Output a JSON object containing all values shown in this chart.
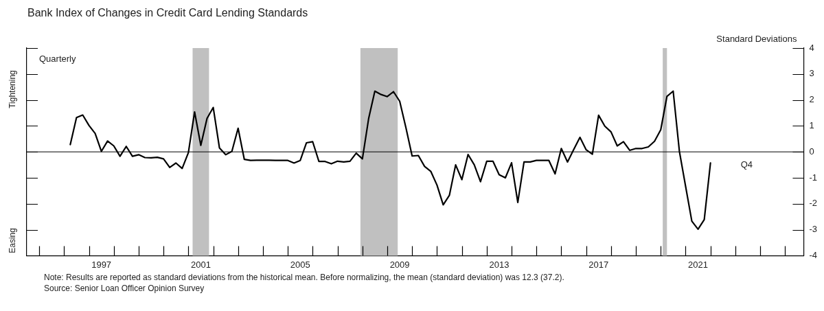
{
  "chart_data": {
    "type": "line",
    "title": "Bank Index of Changes in Credit Card Lending Standards",
    "ylabel": "Standard Deviations",
    "annotations": [
      "Quarterly",
      "Tightening",
      "Easing",
      "Q4",
      "Note: Results are reported as standard deviations from the historical mean. Before normalizing, the mean (standard deviation) was 12.3 (37.2).",
      "Source: Senior Loan Officer Opinion Survey"
    ],
    "x": [
      1996.25,
      1996.5,
      1996.75,
      1997,
      1997.25,
      1997.5,
      1997.75,
      1998,
      1998.25,
      1998.5,
      1998.75,
      1999,
      1999.25,
      1999.5,
      1999.75,
      2000,
      2000.25,
      2000.5,
      2000.75,
      2001,
      2001.25,
      2001.5,
      2001.75,
      2002,
      2002.25,
      2002.5,
      2002.75,
      2003,
      2003.25,
      2003.5,
      2003.75,
      2004,
      2004.25,
      2004.5,
      2004.75,
      2005,
      2005.25,
      2005.5,
      2005.75,
      2006,
      2006.25,
      2006.5,
      2006.75,
      2007,
      2007.25,
      2007.5,
      2007.75,
      2008,
      2008.25,
      2008.5,
      2008.75,
      2009,
      2009.25,
      2009.5,
      2009.75,
      2010,
      2010.25,
      2010.5,
      2010.75,
      2011,
      2011.25,
      2011.5,
      2011.75,
      2012,
      2012.25,
      2012.5,
      2012.75,
      2013,
      2013.25,
      2013.5,
      2013.75,
      2014,
      2014.25,
      2014.5,
      2014.75,
      2015,
      2015.25,
      2015.5,
      2015.75,
      2016,
      2016.25,
      2016.5,
      2016.75,
      2017,
      2017.25,
      2017.5,
      2017.75,
      2018,
      2018.25,
      2018.5,
      2018.75,
      2019,
      2019.25,
      2019.5,
      2019.75,
      2020,
      2020.25,
      2020.5,
      2020.75,
      2021,
      2021.25,
      2021.5,
      2021.75,
      2022
    ],
    "series": [
      {
        "color": "#000000",
        "values": [
          0.28,
          1.32,
          1.42,
          1.02,
          0.71,
          0.02,
          0.42,
          0.23,
          -0.17,
          0.21,
          -0.17,
          -0.11,
          -0.22,
          -0.23,
          -0.21,
          -0.27,
          -0.6,
          -0.43,
          -0.64,
          -0.03,
          1.54,
          0.25,
          1.29,
          1.71,
          0.15,
          -0.11,
          0.02,
          0.91,
          -0.29,
          -0.33,
          -0.32,
          -0.32,
          -0.32,
          -0.33,
          -0.33,
          -0.33,
          -0.43,
          -0.33,
          0.35,
          0.39,
          -0.37,
          -0.37,
          -0.46,
          -0.36,
          -0.39,
          -0.36,
          -0.05,
          -0.27,
          1.28,
          2.34,
          2.21,
          2.13,
          2.32,
          1.95,
          0.93,
          -0.16,
          -0.14,
          -0.56,
          -0.75,
          -1.28,
          -2.04,
          -1.67,
          -0.5,
          -1.07,
          -0.1,
          -0.5,
          -1.15,
          -0.36,
          -0.36,
          -0.88,
          -1.0,
          -0.42,
          -1.95,
          -0.39,
          -0.39,
          -0.33,
          -0.33,
          -0.33,
          -0.85,
          0.13,
          -0.39,
          0.09,
          0.56,
          0.08,
          -0.09,
          1.41,
          0.99,
          0.77,
          0.23,
          0.39,
          0.06,
          0.13,
          0.13,
          0.19,
          0.41,
          0.85,
          2.14,
          2.34,
          0.02,
          -1.33,
          -2.67,
          -2.98,
          -2.61,
          -0.43
        ]
      }
    ],
    "xlim": [
      1994.5,
      2025.75
    ],
    "xticks": [
      {
        "value": 1995,
        "label": null
      },
      {
        "value": 1996,
        "label": null
      },
      {
        "value": 1997,
        "label": null
      },
      {
        "value": 1997.5,
        "label": "1997"
      },
      {
        "value": 1998,
        "label": null
      },
      {
        "value": 1999,
        "label": null
      },
      {
        "value": 2000,
        "label": null
      },
      {
        "value": 2001,
        "label": null
      },
      {
        "value": 2001.5,
        "label": "2001"
      },
      {
        "value": 2002,
        "label": null
      },
      {
        "value": 2003,
        "label": null
      },
      {
        "value": 2004,
        "label": null
      },
      {
        "value": 2005,
        "label": null
      },
      {
        "value": 2005.5,
        "label": "2005"
      },
      {
        "value": 2006,
        "label": null
      },
      {
        "value": 2007,
        "label": null
      },
      {
        "value": 2008,
        "label": null
      },
      {
        "value": 2009,
        "label": null
      },
      {
        "value": 2009.5,
        "label": "2009"
      },
      {
        "value": 2010,
        "label": null
      },
      {
        "value": 2011,
        "label": null
      },
      {
        "value": 2012,
        "label": null
      },
      {
        "value": 2013,
        "label": null
      },
      {
        "value": 2013.5,
        "label": "2013"
      },
      {
        "value": 2014,
        "label": null
      },
      {
        "value": 2015,
        "label": null
      },
      {
        "value": 2016,
        "label": null
      },
      {
        "value": 2017,
        "label": null
      },
      {
        "value": 2017.5,
        "label": "2017"
      },
      {
        "value": 2018,
        "label": null
      },
      {
        "value": 2019,
        "label": null
      },
      {
        "value": 2020,
        "label": null
      },
      {
        "value": 2021,
        "label": null
      },
      {
        "value": 2021.5,
        "label": "2021"
      },
      {
        "value": 2022,
        "label": null
      },
      {
        "value": 2023,
        "label": null
      },
      {
        "value": 2024,
        "label": null
      },
      {
        "value": 2025,
        "label": null
      }
    ],
    "ylim": [
      -4,
      4
    ],
    "yticks": [
      -4,
      -3,
      -2,
      -1,
      0,
      1,
      2,
      3,
      4
    ],
    "ref_lines": [
      {
        "axis": "y",
        "value": 0,
        "color": "#000000"
      }
    ],
    "bands": [
      {
        "axis": "x",
        "from": 2001.17,
        "to": 2001.83,
        "color": "#c0c0c0"
      },
      {
        "axis": "x",
        "from": 2007.92,
        "to": 2009.42,
        "color": "#c0c0c0"
      },
      {
        "axis": "x",
        "from": 2020.08,
        "to": 2020.25,
        "color": "#c0c0c0"
      }
    ],
    "grid": false,
    "legend": false,
    "marker": "none",
    "line_style": "solid"
  }
}
